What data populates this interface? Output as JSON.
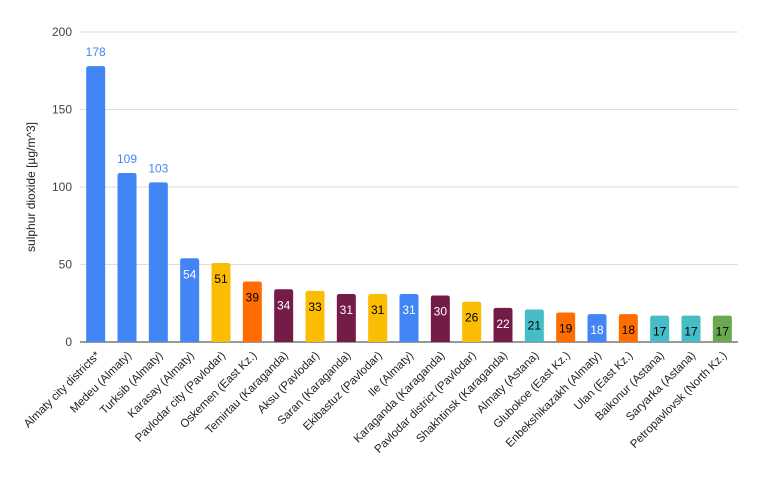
{
  "chart_data": {
    "type": "bar",
    "title": "",
    "xlabel": "",
    "ylabel": "sulphur dioxide [µg/m^3]",
    "ylim": [
      0,
      200
    ],
    "yticks": [
      0,
      50,
      100,
      150,
      200
    ],
    "grid": true,
    "legend": "none",
    "categories": [
      "Almaty city districts*",
      "Medeu (Almaty)",
      "Turksib (Almaty)",
      "Karasay (Almaty)",
      "Pavlodar city (Pavlodar)",
      "Oskemen (East Kz.)",
      "Temirtau (Karaganda)",
      "Aksu (Pavlodar)",
      "Saran (Karaganda)",
      "Ekibastuz (Pavlodar)",
      "Ile (Almaty)",
      "Karaganda (Karaganda)",
      "Pavlodar district (Pavlodar)",
      "Shakhtinsk (Karaganda)",
      "Almaty (Astana)",
      "Glubokoe (East Kz.)",
      "Enbekshikazakh (Almaty)",
      "Ulan (East Kz.)",
      "Baikonur (Astana)",
      "Saryarka (Astana)",
      "Petropavlovsk (North Kz.)"
    ],
    "values": [
      178,
      109,
      103,
      54,
      51,
      39,
      34,
      33,
      31,
      31,
      31,
      30,
      26,
      22,
      21,
      19,
      18,
      18,
      17,
      17,
      17
    ],
    "bar_colors": [
      "#4285f4",
      "#4285f4",
      "#4285f4",
      "#4285f4",
      "#fbbc04",
      "#ff6d01",
      "#741b47",
      "#fbbc04",
      "#741b47",
      "#fbbc04",
      "#4285f4",
      "#741b47",
      "#fbbc04",
      "#741b47",
      "#46bdc6",
      "#ff6d01",
      "#4285f4",
      "#ff6d01",
      "#46bdc6",
      "#46bdc6",
      "#6aa84f"
    ],
    "label_colors": [
      "#4285f4",
      "#4285f4",
      "#4285f4",
      "#ffffff",
      "#000000",
      "#000000",
      "#ffffff",
      "#000000",
      "#ffffff",
      "#000000",
      "#ffffff",
      "#ffffff",
      "#000000",
      "#ffffff",
      "#000000",
      "#000000",
      "#ffffff",
      "#000000",
      "#000000",
      "#000000",
      "#000000"
    ]
  }
}
